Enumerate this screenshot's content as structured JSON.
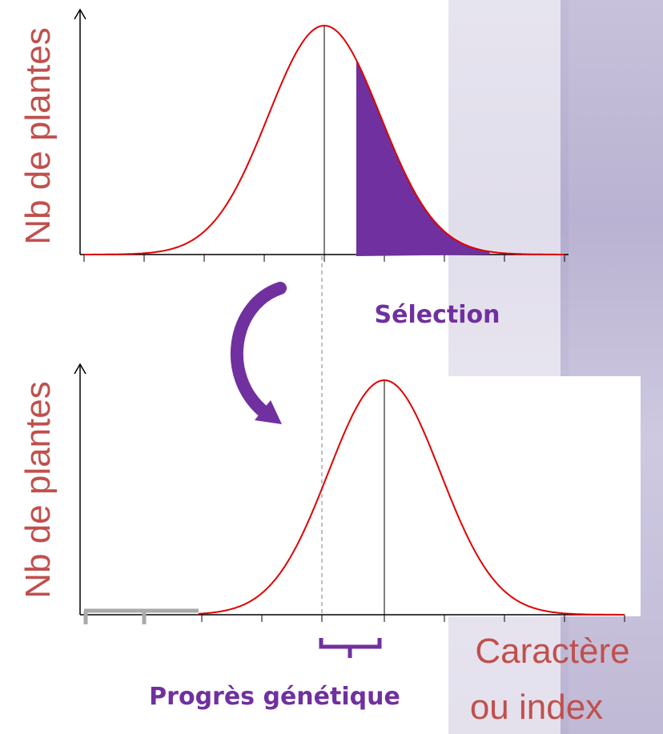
{
  "y_axis_labels": [
    "Nb de plantes",
    "Nb de plantes"
  ],
  "selection_label": "Sélection",
  "progress_label": "Progrès génétique",
  "x_axis_label": [
    "Caractère",
    "ou index"
  ]
}
